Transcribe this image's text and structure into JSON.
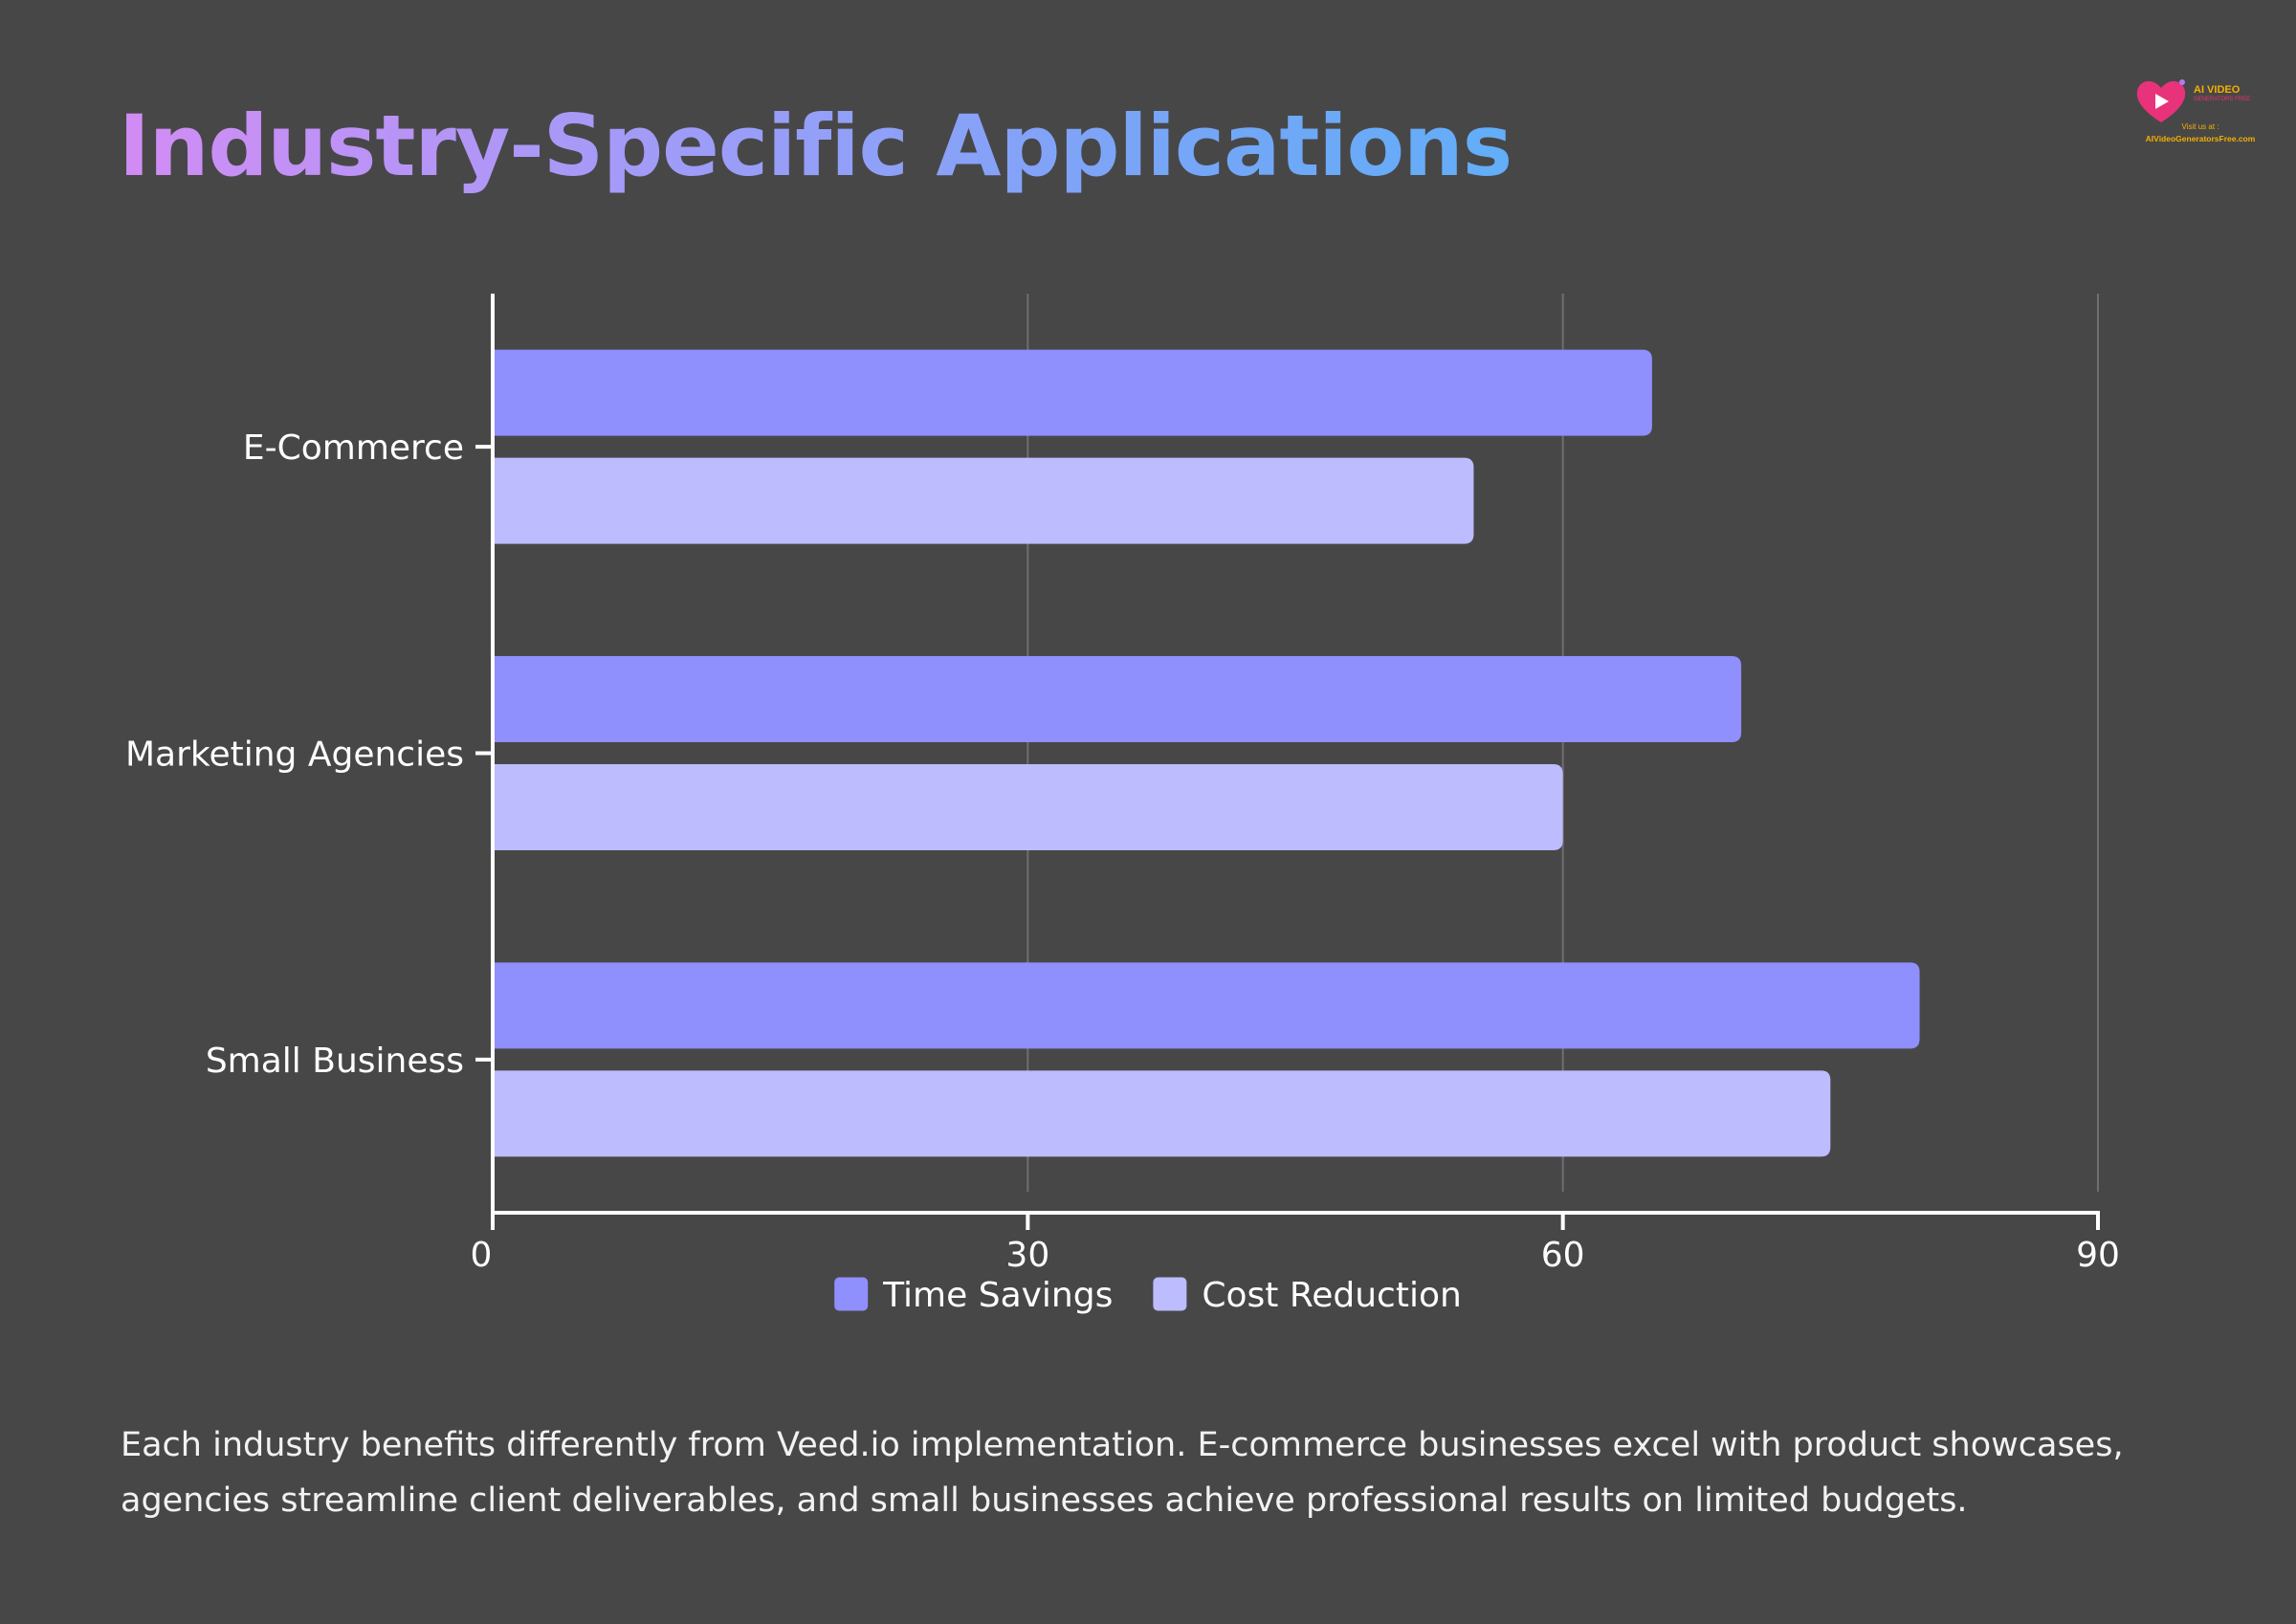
{
  "page": {
    "title": "Industry-Specific Applications",
    "description": "Each industry benefits differently from Veed.io implementation. E-commerce businesses excel with product showcases, agencies streamline client deliverables, and small businesses achieve professional results on limited budgets."
  },
  "logo": {
    "brand": "AI VIDEO",
    "tagline": "GENERATORS FREE",
    "visit": "Visit us at :",
    "url": "AIVideoGeneratorsFree.com"
  },
  "chart_data": {
    "type": "bar",
    "orientation": "horizontal",
    "title": "",
    "xlabel": "",
    "ylabel": "",
    "categories": [
      "E-Commerce",
      "Marketing Agencies",
      "Small Business"
    ],
    "series": [
      {
        "name": "Time Savings",
        "values": [
          65,
          70,
          80
        ],
        "color": "#8f8ffd"
      },
      {
        "name": "Cost Reduction",
        "values": [
          55,
          60,
          75
        ],
        "color": "#bcbcfe"
      }
    ],
    "xlim": [
      0,
      90
    ],
    "xticks": [
      0,
      30,
      60,
      90
    ],
    "grid": true,
    "legend": "bottom-center"
  },
  "colors": {
    "background": "#484748",
    "axis": "#ffffff",
    "grid": "#6f6e6f"
  }
}
